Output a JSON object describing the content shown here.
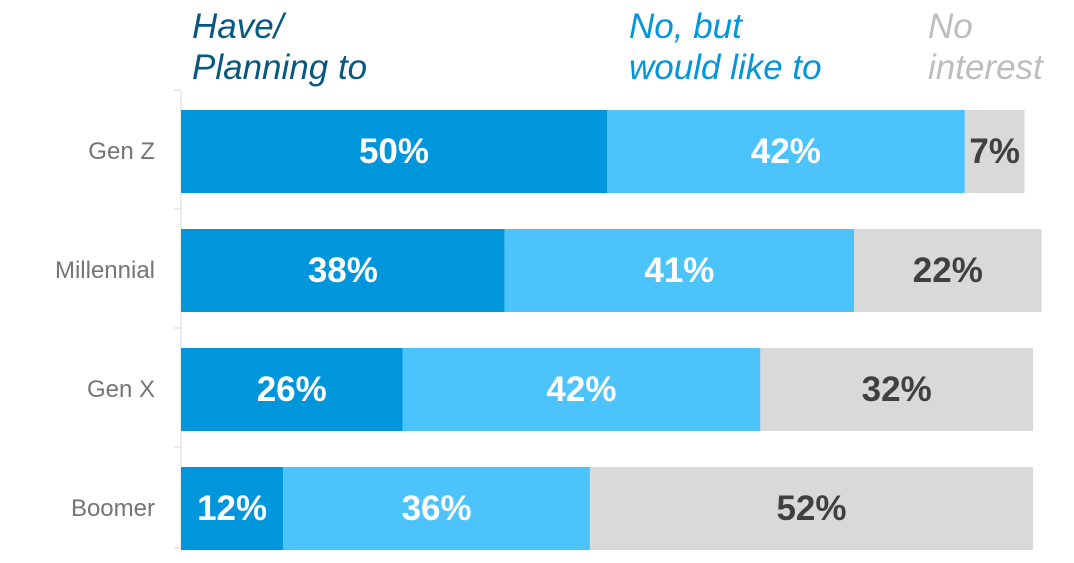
{
  "chart_data": {
    "type": "bar",
    "orientation": "horizontal",
    "stacked": true,
    "categories": [
      "Gen Z",
      "Millennial",
      "Gen X",
      "Boomer"
    ],
    "series": [
      {
        "name": "Have/\nPlanning to",
        "values": [
          50,
          38,
          26,
          12
        ],
        "color": "#0096DC",
        "label_color": "#ffffff",
        "legend_color": "#07587E"
      },
      {
        "name": "No, but\nwould like to",
        "values": [
          42,
          41,
          42,
          36
        ],
        "color": "#4CC4FB",
        "label_color": "#ffffff",
        "legend_color": "#0396DA"
      },
      {
        "name": "No\ninterest",
        "values": [
          7,
          22,
          32,
          52
        ],
        "color": "#D9D9D9",
        "label_color": "#404040",
        "legend_color": "#BDBDBD"
      }
    ],
    "value_suffix": "%",
    "legend_position": "top",
    "category_label_color": "#757575",
    "axis_color": "#D9D9D9",
    "grid": false
  }
}
